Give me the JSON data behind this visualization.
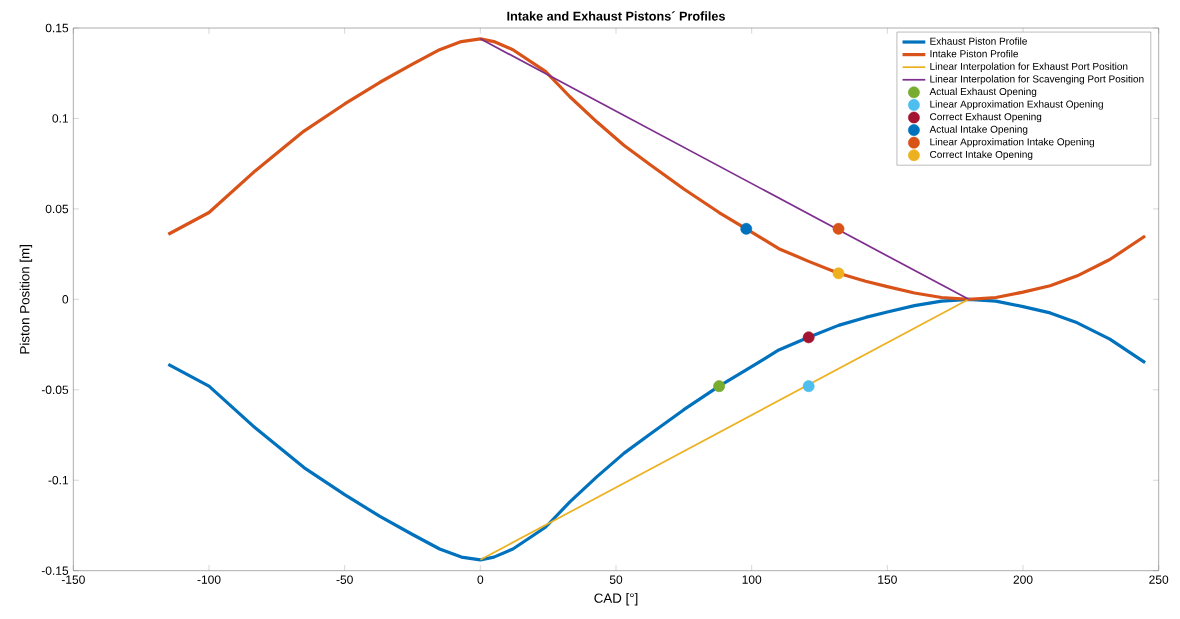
{
  "chart_data": {
    "type": "line",
    "title": "Intake and Exhaust Pistons´ Profiles",
    "xlabel": "CAD [°]",
    "ylabel": "Piston Position [m]",
    "xlim": [
      -150,
      250
    ],
    "ylim": [
      -0.15,
      0.15
    ],
    "xticks": [
      -150,
      -100,
      -50,
      0,
      50,
      100,
      150,
      200,
      250
    ],
    "yticks": [
      -0.15,
      -0.1,
      -0.05,
      0,
      0.05,
      0.1,
      0.15
    ],
    "grid": false,
    "legend": "top right",
    "series": [
      {
        "name": "Exhaust Piston Profile",
        "color": "#0072bd",
        "x": [
          -115,
          -100,
          -83,
          -65,
          -50,
          -37,
          -25,
          -15,
          -7,
          0,
          5,
          12,
          24,
          33,
          43,
          53,
          63,
          75,
          88,
          98,
          110,
          121,
          132,
          142,
          150,
          160,
          170,
          180,
          190,
          200,
          210,
          220,
          232,
          245
        ],
        "values": [
          -0.036,
          -0.048,
          -0.071,
          -0.093,
          -0.108,
          -0.12,
          -0.13,
          -0.138,
          -0.1425,
          -0.144,
          -0.1425,
          -0.138,
          -0.126,
          -0.112,
          -0.098,
          -0.085,
          -0.074,
          -0.061,
          -0.048,
          -0.039,
          -0.028,
          -0.021,
          -0.0144,
          -0.01,
          -0.007,
          -0.0035,
          -0.001,
          0,
          -0.001,
          -0.004,
          -0.0075,
          -0.013,
          -0.022,
          -0.035
        ]
      },
      {
        "name": "Intake Piston Profile",
        "color": "#d95319",
        "x": [
          -115,
          -100,
          -83,
          -65,
          -50,
          -37,
          -25,
          -15,
          -7,
          0,
          5,
          12,
          24,
          33,
          43,
          53,
          63,
          75,
          88,
          98,
          110,
          121,
          132,
          142,
          150,
          160,
          170,
          180,
          190,
          200,
          210,
          220,
          232,
          245
        ],
        "values": [
          0.036,
          0.048,
          0.071,
          0.093,
          0.108,
          0.12,
          0.13,
          0.138,
          0.1425,
          0.144,
          0.1425,
          0.138,
          0.126,
          0.112,
          0.098,
          0.085,
          0.074,
          0.061,
          0.048,
          0.039,
          0.028,
          0.021,
          0.0144,
          0.01,
          0.007,
          0.0035,
          0.001,
          0,
          0.001,
          0.004,
          0.0075,
          0.013,
          0.022,
          0.035
        ]
      },
      {
        "name": "Linear Interpolation for Exhaust Port Position",
        "color": "#edb120",
        "x": [
          0,
          180
        ],
        "values": [
          -0.144,
          0
        ]
      },
      {
        "name": "Linear Interpolation for Scavenging Port Position",
        "color": "#7e2f8e",
        "x": [
          0,
          180
        ],
        "values": [
          0.144,
          0
        ]
      },
      {
        "name": "Actual Exhaust Opening",
        "type": "scatter",
        "marker": "circle",
        "color": "#77ac30",
        "x": [
          88
        ],
        "values": [
          -0.048
        ]
      },
      {
        "name": "Linear Approximation Exhaust Opening",
        "type": "scatter",
        "marker": "circle",
        "color": "#4dbeee",
        "x": [
          121
        ],
        "values": [
          -0.048
        ]
      },
      {
        "name": "Correct Exhaust Opening",
        "type": "scatter",
        "marker": "circle",
        "color": "#a2142f",
        "x": [
          121
        ],
        "values": [
          -0.021
        ]
      },
      {
        "name": "Actual Intake Opening",
        "type": "scatter",
        "marker": "circle",
        "color": "#0072bd",
        "x": [
          98
        ],
        "values": [
          0.039
        ]
      },
      {
        "name": "Linear Approximation Intake Opening",
        "type": "scatter",
        "marker": "circle",
        "color": "#d95319",
        "x": [
          132
        ],
        "values": [
          0.039
        ]
      },
      {
        "name": "Correct Intake Opening",
        "type": "scatter",
        "marker": "circle",
        "color": "#edb120",
        "x": [
          132
        ],
        "values": [
          0.0144
        ]
      }
    ]
  }
}
